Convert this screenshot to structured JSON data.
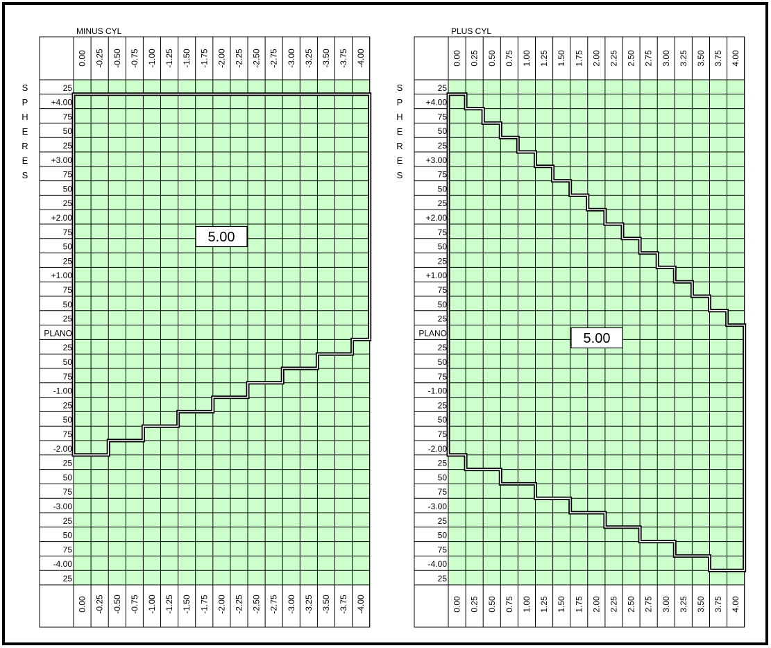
{
  "colors": {
    "cell_fill": "#ccffcc",
    "grid_line": "#000000",
    "boundary_line": "#000000",
    "background": "#ffffff"
  },
  "side_label_letters": [
    "S",
    "P",
    "H",
    "E",
    "R",
    "E",
    "S"
  ],
  "sphere_rows": [
    "25",
    "+4.00",
    "75",
    "50",
    "25",
    "+3.00",
    "75",
    "50",
    "25",
    "+2.00",
    "75",
    "50",
    "25",
    "+1.00",
    "75",
    "50",
    "25",
    "PLANO",
    "25",
    "50",
    "75",
    "-1.00",
    "25",
    "50",
    "75",
    "-2.00",
    "25",
    "50",
    "75",
    "-3.00",
    "25",
    "50",
    "75",
    "-4.00",
    "25"
  ],
  "chart_data": [
    {
      "type": "table",
      "title": "MINUS CYL",
      "columns": [
        "0.00",
        "-0.25",
        "-0.50",
        "-0.75",
        "-1.00",
        "-1.25",
        "-1.50",
        "-1.75",
        "-2.00",
        "-2.25",
        "-2.50",
        "-2.75",
        "-3.00",
        "-3.25",
        "-3.50",
        "-3.75",
        "-4.00"
      ],
      "rows": [
        "25",
        "+4.00",
        "75",
        "50",
        "25",
        "+3.00",
        "75",
        "50",
        "25",
        "+2.00",
        "75",
        "50",
        "25",
        "+1.00",
        "75",
        "50",
        "25",
        "PLANO",
        "25",
        "50",
        "75",
        "-1.00",
        "25",
        "50",
        "75",
        "-2.00",
        "25",
        "50",
        "75",
        "-3.00",
        "25",
        "50",
        "75",
        "-4.00",
        "25"
      ],
      "region_label": "5.00",
      "region": [
        {
          "cyl": "0.00",
          "sphere_max": "+4.00",
          "sphere_min": "-2.00"
        },
        {
          "cyl": "-0.25",
          "sphere_max": "+4.00",
          "sphere_min": "-2.00"
        },
        {
          "cyl": "-0.50",
          "sphere_max": "+4.00",
          "sphere_min": "-1.75"
        },
        {
          "cyl": "-0.75",
          "sphere_max": "+4.00",
          "sphere_min": "-1.75"
        },
        {
          "cyl": "-1.00",
          "sphere_max": "+4.00",
          "sphere_min": "-1.50"
        },
        {
          "cyl": "-1.25",
          "sphere_max": "+4.00",
          "sphere_min": "-1.50"
        },
        {
          "cyl": "-1.50",
          "sphere_max": "+4.00",
          "sphere_min": "-1.25"
        },
        {
          "cyl": "-1.75",
          "sphere_max": "+4.00",
          "sphere_min": "-1.25"
        },
        {
          "cyl": "-2.00",
          "sphere_max": "+4.00",
          "sphere_min": "-1.00"
        },
        {
          "cyl": "-2.25",
          "sphere_max": "+4.00",
          "sphere_min": "-1.00"
        },
        {
          "cyl": "-2.50",
          "sphere_max": "+4.00",
          "sphere_min": "-0.75"
        },
        {
          "cyl": "-2.75",
          "sphere_max": "+4.00",
          "sphere_min": "-0.75"
        },
        {
          "cyl": "-3.00",
          "sphere_max": "+4.00",
          "sphere_min": "-0.50"
        },
        {
          "cyl": "-3.25",
          "sphere_max": "+4.00",
          "sphere_min": "-0.50"
        },
        {
          "cyl": "-3.50",
          "sphere_max": "+4.00",
          "sphere_min": "-0.25"
        },
        {
          "cyl": "-3.75",
          "sphere_max": "+4.00",
          "sphere_min": "-0.25"
        },
        {
          "cyl": "-4.00",
          "sphere_max": "+4.00",
          "sphere_min": "0.00"
        }
      ]
    },
    {
      "type": "table",
      "title": "PLUS CYL",
      "columns": [
        "0.00",
        "0.25",
        "0.50",
        "0.75",
        "1.00",
        "1.25",
        "1.50",
        "1.75",
        "2.00",
        "2.25",
        "2.50",
        "2.75",
        "3.00",
        "3.25",
        "3.50",
        "3.75",
        "4.00"
      ],
      "rows": [
        "25",
        "+4.00",
        "75",
        "50",
        "25",
        "+3.00",
        "75",
        "50",
        "25",
        "+2.00",
        "75",
        "50",
        "25",
        "+1.00",
        "75",
        "50",
        "25",
        "PLANO",
        "25",
        "50",
        "75",
        "-1.00",
        "25",
        "50",
        "75",
        "-2.00",
        "25",
        "50",
        "75",
        "-3.00",
        "25",
        "50",
        "75",
        "-4.00",
        "25"
      ],
      "region_label": "5.00",
      "region": [
        {
          "cyl": "0.00",
          "sphere_max": "+4.00",
          "sphere_min": "-2.00"
        },
        {
          "cyl": "0.25",
          "sphere_max": "+3.75",
          "sphere_min": "-2.25"
        },
        {
          "cyl": "0.50",
          "sphere_max": "+3.50",
          "sphere_min": "-2.25"
        },
        {
          "cyl": "0.75",
          "sphere_max": "+3.25",
          "sphere_min": "-2.50"
        },
        {
          "cyl": "1.00",
          "sphere_max": "+3.00",
          "sphere_min": "-2.50"
        },
        {
          "cyl": "1.25",
          "sphere_max": "+2.75",
          "sphere_min": "-2.75"
        },
        {
          "cyl": "1.50",
          "sphere_max": "+2.50",
          "sphere_min": "-2.75"
        },
        {
          "cyl": "1.75",
          "sphere_max": "+2.25",
          "sphere_min": "-3.00"
        },
        {
          "cyl": "2.00",
          "sphere_max": "+2.00",
          "sphere_min": "-3.00"
        },
        {
          "cyl": "2.25",
          "sphere_max": "+1.75",
          "sphere_min": "-3.25"
        },
        {
          "cyl": "2.50",
          "sphere_max": "+1.50",
          "sphere_min": "-3.25"
        },
        {
          "cyl": "2.75",
          "sphere_max": "+1.25",
          "sphere_min": "-3.50"
        },
        {
          "cyl": "3.00",
          "sphere_max": "+1.00",
          "sphere_min": "-3.50"
        },
        {
          "cyl": "3.25",
          "sphere_max": "+0.75",
          "sphere_min": "-3.75"
        },
        {
          "cyl": "3.50",
          "sphere_max": "+0.50",
          "sphere_min": "-3.75"
        },
        {
          "cyl": "3.75",
          "sphere_max": "+0.25",
          "sphere_min": "-4.00"
        },
        {
          "cyl": "4.00",
          "sphere_max": "0.00",
          "sphere_min": "-4.00"
        }
      ]
    }
  ]
}
